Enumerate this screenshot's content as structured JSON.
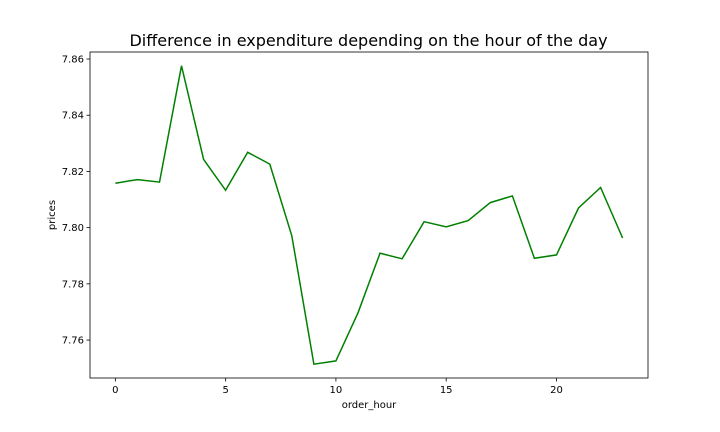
{
  "chart_data": {
    "type": "line",
    "title": "Difference in expenditure depending on the hour of the day",
    "xlabel": "order_hour",
    "ylabel": "prices",
    "xlim": [
      -1.15,
      24.15
    ],
    "ylim": [
      7.7465,
      7.8625
    ],
    "x_ticks": [
      0,
      5,
      10,
      15,
      20
    ],
    "y_ticks": [
      7.76,
      7.78,
      7.8,
      7.82,
      7.84,
      7.86
    ],
    "y_tick_labels": [
      "7.76",
      "7.78",
      "7.80",
      "7.82",
      "7.84",
      "7.86"
    ],
    "grid": false,
    "line_color": "#008000",
    "series": [
      {
        "x": [
          0,
          1,
          2,
          3,
          4,
          5,
          6,
          7,
          8,
          9,
          10,
          11,
          12,
          13,
          14,
          15,
          16,
          17,
          18,
          19,
          20,
          21,
          22,
          23
        ],
        "values": [
          7.8158,
          7.8171,
          7.8162,
          7.8576,
          7.8243,
          7.8133,
          7.8268,
          7.8226,
          7.7971,
          7.7514,
          7.7526,
          7.7697,
          7.7909,
          7.7889,
          7.8021,
          7.8003,
          7.8025,
          7.8089,
          7.8113,
          7.7891,
          7.7903,
          7.807,
          7.8143,
          7.7963
        ]
      }
    ]
  }
}
